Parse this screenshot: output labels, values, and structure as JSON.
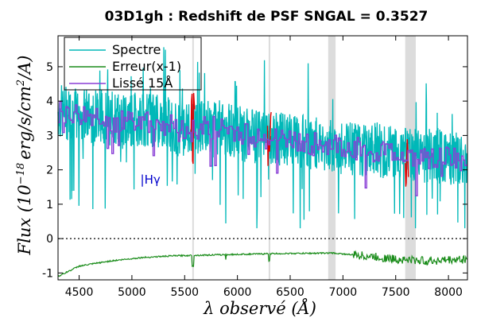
{
  "chart_data": {
    "type": "line",
    "title": "03D1gh : Redshift de PSF SNGAL = 0.3527",
    "xlabel": "λ observé (Å)",
    "ylabel_main": "Flux (10",
    "ylabel_exp": "−18",
    "ylabel_rest": "erg/s/cm",
    "ylabel_exp2": "2",
    "ylabel_end": "/A)",
    "xlim": [
      4300,
      8180
    ],
    "ylim": [
      -1.2,
      5.9
    ],
    "x_ticks": [
      4500,
      5000,
      5500,
      6000,
      6500,
      7000,
      7500,
      8000
    ],
    "x_tick_labels": [
      "4500",
      "5000",
      "5500",
      "6000",
      "6500",
      "7000",
      "7500",
      "8000"
    ],
    "y_ticks": [
      -1,
      0,
      1,
      2,
      3,
      4,
      5
    ],
    "y_tick_labels": [
      "-1",
      "0",
      "1",
      "2",
      "3",
      "4",
      "5"
    ],
    "grid": false,
    "legend_position": "top-left",
    "colors": {
      "spectrum": "#00b8b8",
      "error": "#1a8c1a",
      "smooth": "#8a3fd6",
      "masked": "#e00000",
      "sky_band": "#dcdcdc",
      "zero_line": "#000000",
      "annotation": "#0000cc"
    },
    "series": [
      {
        "name": "Spectre",
        "style": "cyan-noisy",
        "x": [
          4300,
          4500,
          4700,
          4900,
          5100,
          5300,
          5500,
          5700,
          5900,
          6100,
          6300,
          6500,
          6700,
          6900,
          7100,
          7300,
          7500,
          7700,
          7900,
          8180
        ],
        "y": [
          3.7,
          3.6,
          3.6,
          3.4,
          3.5,
          3.4,
          3.1,
          3.3,
          3.2,
          3.0,
          2.9,
          2.9,
          2.8,
          2.7,
          2.6,
          2.6,
          2.5,
          2.4,
          2.4,
          2.3
        ]
      },
      {
        "name": "Erreur(x-1)",
        "style": "green-smooth",
        "x": [
          4300,
          4500,
          4800,
          5100,
          5400,
          5700,
          6000,
          6300,
          6600,
          6900,
          7200,
          7500,
          7800,
          8180
        ],
        "y": [
          -1.1,
          -0.8,
          -0.65,
          -0.55,
          -0.5,
          -0.48,
          -0.46,
          -0.44,
          -0.43,
          -0.42,
          -0.5,
          -0.6,
          -0.65,
          -0.6
        ]
      },
      {
        "name": "Lissé 15Å",
        "style": "purple-step",
        "x": [
          4300,
          4500,
          4700,
          4900,
          5100,
          5300,
          5500,
          5700,
          5900,
          6100,
          6300,
          6500,
          6700,
          6900,
          7100,
          7300,
          7500,
          7700,
          7900,
          8180
        ],
        "y": [
          3.65,
          3.55,
          3.55,
          3.4,
          3.45,
          3.35,
          3.1,
          3.25,
          3.15,
          3.0,
          2.9,
          2.85,
          2.75,
          2.7,
          2.6,
          2.55,
          2.45,
          2.4,
          2.35,
          2.3
        ]
      }
    ],
    "legend": [
      {
        "label": "Spectre",
        "color": "#00b8b8"
      },
      {
        "label": "Erreur(x-1)",
        "color": "#1a8c1a"
      },
      {
        "label": "Lissé 15Å",
        "color": "#8a3fd6"
      }
    ],
    "sky_bands": [
      {
        "x0": 5572,
        "x1": 5582
      },
      {
        "x0": 6296,
        "x1": 6306
      },
      {
        "x0": 6860,
        "x1": 6930
      },
      {
        "x0": 7590,
        "x1": 7690
      }
    ],
    "masked_regions": [
      {
        "x0": 5560,
        "x1": 5595
      },
      {
        "x0": 6285,
        "x1": 6320
      },
      {
        "x0": 7590,
        "x1": 7620
      }
    ],
    "annotations": [
      {
        "text": "|Hγ",
        "x": 5080,
        "y": 1.6
      }
    ]
  }
}
